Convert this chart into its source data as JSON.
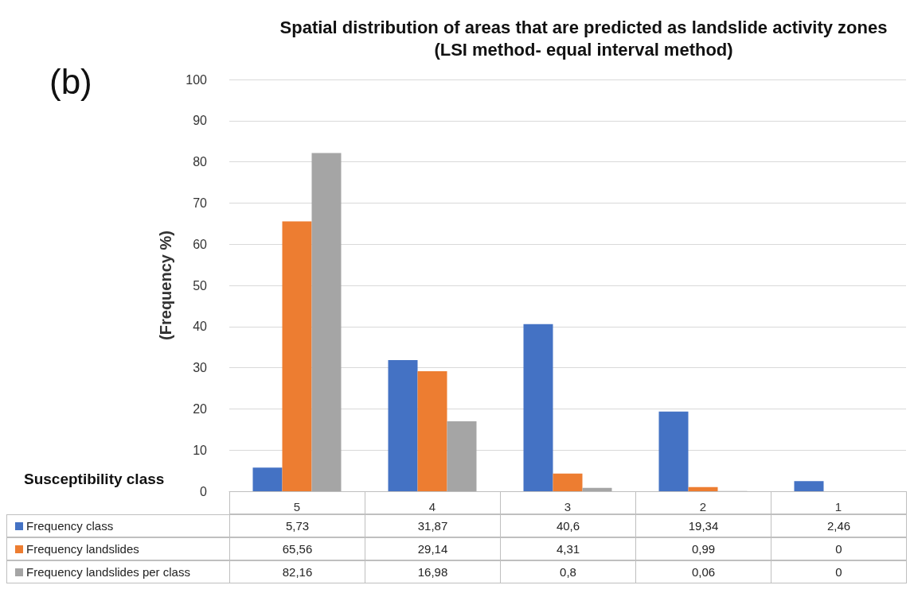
{
  "chart_data": {
    "type": "bar",
    "title": "Spatial distribution of areas that are predicted as landslide activity zones",
    "subtitle": "(LSI method- equal interval method)",
    "xlabel": "Susceptibility class",
    "ylabel": "(Frequency %)",
    "annotations": [
      "(b)"
    ],
    "categories": [
      "5",
      "4",
      "3",
      "2",
      "1"
    ],
    "series": [
      {
        "name": "Frequency class",
        "color": "#4472c4",
        "values": [
          5.73,
          31.87,
          40.6,
          19.34,
          2.46
        ],
        "value_labels": [
          "5,73",
          "31,87",
          "40,6",
          "19,34",
          "2,46"
        ]
      },
      {
        "name": "Frequency landslides",
        "color": "#ed7d31",
        "values": [
          65.56,
          29.14,
          4.31,
          0.99,
          0
        ],
        "value_labels": [
          "65,56",
          "29,14",
          "4,31",
          "0,99",
          "0"
        ]
      },
      {
        "name": "Frequency landslides per class",
        "color": "#a5a5a5",
        "values": [
          82.16,
          16.98,
          0.8,
          0.06,
          0
        ],
        "value_labels": [
          "82,16",
          "16,98",
          "0,8",
          "0,06",
          "0"
        ]
      }
    ],
    "ylim": [
      0,
      100
    ],
    "yticks": [
      0,
      10,
      20,
      30,
      40,
      50,
      60,
      70,
      80,
      90,
      100
    ],
    "grid": "y",
    "legend": "bottom"
  }
}
